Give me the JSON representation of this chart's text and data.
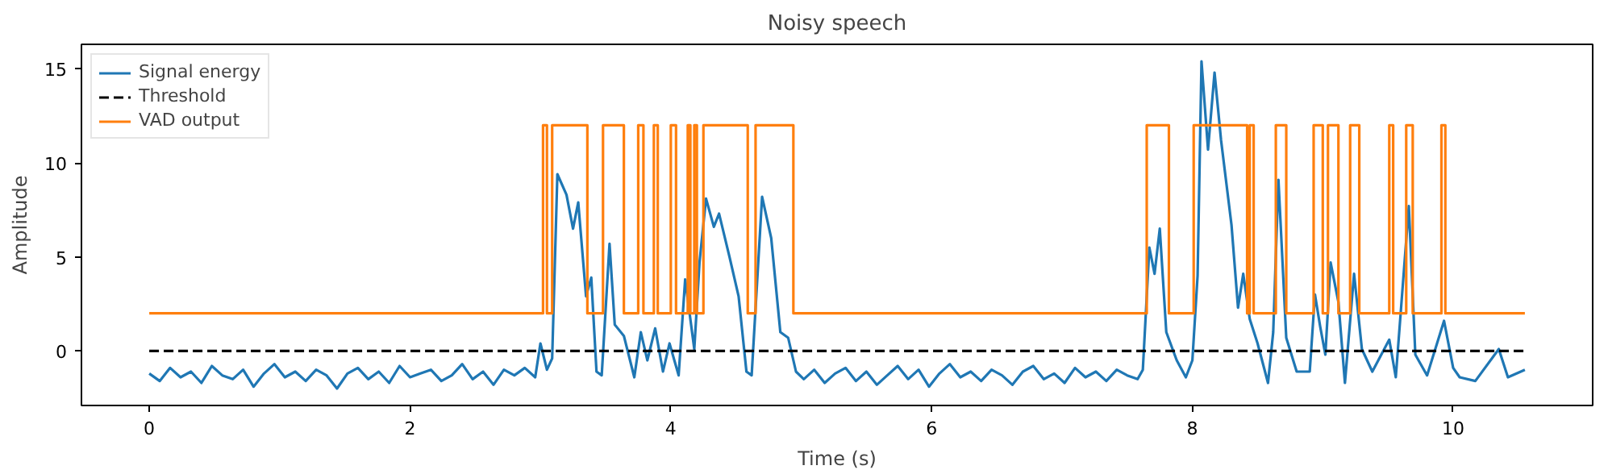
{
  "chart_data": {
    "type": "line",
    "title": "Noisy speech",
    "xlabel": "Time (s)",
    "ylabel": "Amplitude",
    "xlim": [
      -0.52,
      11.07
    ],
    "ylim": [
      -2.9,
      16.3
    ],
    "xticks": [
      0,
      2,
      4,
      6,
      8,
      10
    ],
    "yticks": [
      0,
      5,
      10,
      15
    ],
    "grid": false,
    "legend": "top left",
    "line_style": "solid",
    "series": [
      {
        "name": "Signal energy",
        "color": "#1f77b4",
        "x": [
          0,
          0.08,
          0.16,
          0.24,
          0.32,
          0.4,
          0.48,
          0.56,
          0.64,
          0.72,
          0.8,
          0.88,
          0.96,
          1.04,
          1.12,
          1.2,
          1.28,
          1.36,
          1.44,
          1.52,
          1.6,
          1.68,
          1.76,
          1.84,
          1.92,
          2.0,
          2.08,
          2.16,
          2.24,
          2.32,
          2.4,
          2.48,
          2.56,
          2.64,
          2.72,
          2.8,
          2.88,
          2.96,
          3.0,
          3.05,
          3.09,
          3.13,
          3.2,
          3.25,
          3.29,
          3.35,
          3.39,
          3.43,
          3.47,
          3.53,
          3.57,
          3.64,
          3.72,
          3.77,
          3.82,
          3.88,
          3.94,
          3.99,
          4.06,
          4.11,
          4.18,
          4.22,
          4.27,
          4.33,
          4.37,
          4.45,
          4.52,
          4.58,
          4.62,
          4.7,
          4.77,
          4.84,
          4.9,
          4.96,
          5.02,
          5.1,
          5.18,
          5.26,
          5.34,
          5.42,
          5.5,
          5.58,
          5.66,
          5.74,
          5.82,
          5.9,
          5.98,
          6.06,
          6.14,
          6.22,
          6.3,
          6.38,
          6.46,
          6.54,
          6.62,
          6.7,
          6.78,
          6.86,
          6.94,
          7.02,
          7.1,
          7.18,
          7.26,
          7.34,
          7.42,
          7.5,
          7.58,
          7.62,
          7.67,
          7.71,
          7.75,
          7.8,
          7.88,
          7.95,
          8.0,
          8.04,
          8.07,
          8.12,
          8.17,
          8.22,
          8.3,
          8.35,
          8.39,
          8.44,
          8.5,
          8.58,
          8.62,
          8.66,
          8.72,
          8.8,
          8.9,
          8.94,
          8.98,
          9.02,
          9.06,
          9.12,
          9.17,
          9.24,
          9.3,
          9.38,
          9.51,
          9.56,
          9.66,
          9.71,
          9.8,
          9.93,
          10.0,
          10.05,
          10.17,
          10.35,
          10.42,
          10.55
        ],
        "values": [
          -1.2,
          -1.6,
          -0.9,
          -1.4,
          -1.1,
          -1.7,
          -0.8,
          -1.3,
          -1.5,
          -1.0,
          -1.9,
          -1.2,
          -0.7,
          -1.4,
          -1.1,
          -1.6,
          -1.0,
          -1.3,
          -2.0,
          -1.2,
          -0.9,
          -1.5,
          -1.1,
          -1.7,
          -0.8,
          -1.4,
          -1.2,
          -1.0,
          -1.6,
          -1.3,
          -0.7,
          -1.5,
          -1.1,
          -1.8,
          -1.0,
          -1.3,
          -0.9,
          -1.4,
          0.4,
          -1.0,
          -0.4,
          9.4,
          8.3,
          6.5,
          7.9,
          2.9,
          3.9,
          -1.1,
          -1.3,
          5.7,
          1.4,
          0.8,
          -1.4,
          1.0,
          -0.5,
          1.2,
          -1.1,
          0.4,
          -1.3,
          3.8,
          0.1,
          4.7,
          8.1,
          6.6,
          7.3,
          5.0,
          2.9,
          -1.1,
          -1.3,
          8.2,
          6.0,
          1.0,
          0.7,
          -1.1,
          -1.5,
          -1.0,
          -1.7,
          -1.2,
          -0.9,
          -1.6,
          -1.1,
          -1.8,
          -1.3,
          -0.8,
          -1.5,
          -1.0,
          -1.9,
          -1.2,
          -0.7,
          -1.4,
          -1.1,
          -1.6,
          -1.0,
          -1.3,
          -1.8,
          -1.1,
          -0.8,
          -1.5,
          -1.2,
          -1.7,
          -0.9,
          -1.4,
          -1.1,
          -1.6,
          -1.0,
          -1.3,
          -1.5,
          -1.0,
          5.5,
          4.1,
          6.5,
          1.0,
          -0.5,
          -1.4,
          -0.5,
          4.0,
          15.4,
          10.7,
          14.8,
          11.2,
          6.7,
          2.3,
          4.1,
          1.7,
          0.4,
          -1.7,
          1.0,
          9.1,
          0.7,
          -1.1,
          -1.1,
          3.0,
          1.3,
          -0.2,
          4.7,
          2.6,
          -1.7,
          4.1,
          0.1,
          -1.1,
          0.6,
          -1.4,
          7.7,
          -0.2,
          -1.3,
          1.6,
          -0.9,
          -1.4,
          -1.6,
          0.1,
          -1.4,
          -1.0
        ]
      },
      {
        "name": "Threshold",
        "color": "#000000",
        "line_style": "dashed",
        "x": [
          0,
          10.55
        ],
        "values": [
          0,
          0
        ]
      },
      {
        "name": "VAD output",
        "type": "step",
        "color": "#ff7f0e",
        "x": [
          0,
          3.02,
          3.05,
          3.09,
          3.36,
          3.48,
          3.64,
          3.75,
          3.79,
          3.87,
          3.9,
          4.0,
          4.04,
          4.13,
          4.15,
          4.18,
          4.2,
          4.25,
          4.59,
          4.65,
          4.94,
          7.65,
          7.82,
          8.01,
          8.42,
          8.44,
          8.47,
          8.64,
          8.72,
          8.93,
          9.0,
          9.04,
          9.12,
          9.21,
          9.28,
          9.51,
          9.54,
          9.64,
          9.69,
          9.91,
          9.94,
          10.55
        ],
        "values": [
          2,
          12,
          2,
          12,
          2,
          12,
          2,
          12,
          2,
          12,
          2,
          12,
          2,
          12,
          2,
          12,
          2,
          12,
          2,
          12,
          2,
          12,
          2,
          12,
          2,
          12,
          2,
          12,
          2,
          12,
          2,
          12,
          2,
          12,
          2,
          12,
          2,
          12,
          2,
          12,
          2,
          2
        ]
      }
    ]
  }
}
